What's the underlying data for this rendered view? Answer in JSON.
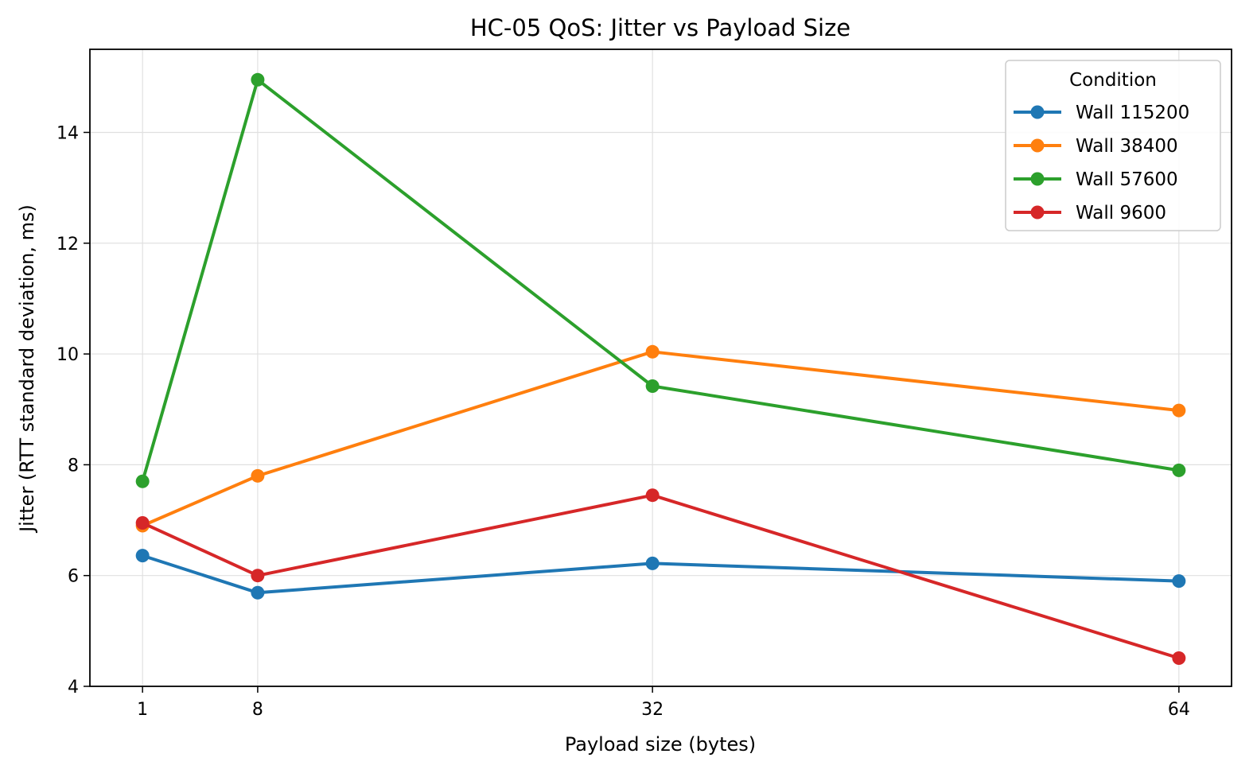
{
  "chart_data": {
    "type": "line",
    "title": "HC-05 QoS: Jitter vs Payload Size",
    "xlabel": "Payload size (bytes)",
    "ylabel": "Jitter (RTT standard deviation, ms)",
    "x": [
      1,
      8,
      32,
      64
    ],
    "x_tick_labels": [
      "1",
      "8",
      "32",
      "64"
    ],
    "xlim": [
      -2.2,
      67.2
    ],
    "ylim": [
      4,
      15.5
    ],
    "y_ticks": [
      4,
      6,
      8,
      10,
      12,
      14
    ],
    "y_tick_labels": [
      "4",
      "6",
      "8",
      "10",
      "12",
      "14"
    ],
    "grid": true,
    "legend": {
      "title": "Condition",
      "position": "top-right"
    },
    "series": [
      {
        "name": "Wall 115200",
        "color": "#1f77b4",
        "values": [
          6.36,
          5.69,
          6.22,
          5.9
        ]
      },
      {
        "name": "Wall 38400",
        "color": "#ff7f0e",
        "values": [
          6.9,
          7.8,
          10.04,
          8.98
        ]
      },
      {
        "name": "Wall 57600",
        "color": "#2ca02c",
        "values": [
          7.7,
          14.95,
          9.42,
          7.9
        ]
      },
      {
        "name": "Wall 9600",
        "color": "#d62728",
        "values": [
          6.95,
          6.0,
          7.45,
          4.51
        ]
      }
    ]
  }
}
